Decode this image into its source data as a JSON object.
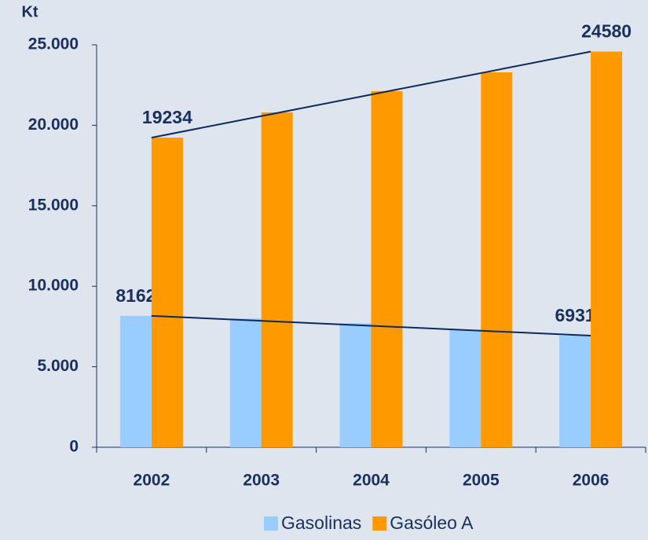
{
  "chart_data": {
    "type": "bar",
    "y_axis_label": "Kt",
    "categories": [
      "2002",
      "2003",
      "2004",
      "2005",
      "2006"
    ],
    "series": [
      {
        "name": "Gasolinas",
        "color": "#99ccff",
        "values": [
          8162,
          8000,
          7700,
          7300,
          6931
        ],
        "value_labels": [
          "8162",
          null,
          null,
          null,
          "6931"
        ]
      },
      {
        "name": "Gasóleo A",
        "color": "#ff9900",
        "values": [
          19234,
          20800,
          22120,
          23290,
          24580
        ],
        "value_labels": [
          "19234",
          null,
          null,
          null,
          "24580"
        ]
      }
    ],
    "ylim": [
      0,
      25000
    ],
    "yticks": [
      0,
      {
        "value": 5000,
        "label": "5.000"
      },
      {
        "value": 10000,
        "label": "10.000"
      },
      {
        "value": 15000,
        "label": "15.000"
      },
      {
        "value": 20000,
        "label": "20.000"
      },
      {
        "value": 25000,
        "label": "25.000"
      }
    ],
    "trend_lines": true,
    "legend": "bottom"
  }
}
